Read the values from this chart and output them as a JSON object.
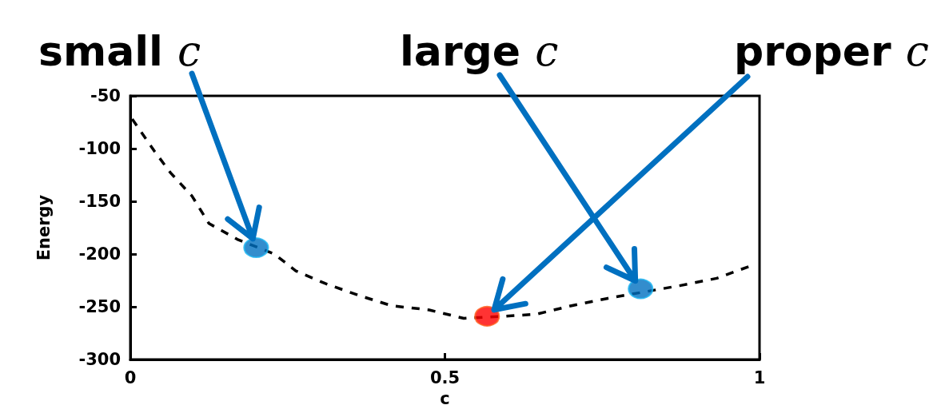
{
  "chart_data": {
    "type": "line",
    "xlabel": "c",
    "ylabel": "Energy",
    "xlim": [
      0,
      1
    ],
    "xticks": [
      0,
      0.5,
      1
    ],
    "ylim": [
      -300,
      -50
    ],
    "yticks": [
      -300,
      -250,
      -200,
      -150,
      -100,
      -50
    ],
    "grid": false,
    "series": [
      {
        "color": "#000000",
        "line_style": "dashed",
        "marker": "none",
        "x": [
          0.003,
          0.039,
          0.064,
          0.098,
          0.125,
          0.17,
          0.229,
          0.263,
          0.31,
          0.362,
          0.415,
          0.475,
          0.53,
          0.593,
          0.646,
          0.701,
          0.759,
          0.873,
          0.932,
          0.987
        ],
        "values": [
          -72,
          -103,
          -123,
          -145,
          -171,
          -186,
          -200,
          -216,
          -228,
          -239,
          -249,
          -253,
          -261,
          -259,
          -257,
          -249,
          -242,
          -230,
          -223,
          -211
        ]
      },
      {
        "type": "scatter",
        "marker": "circle",
        "x": [
          0.2,
          0.811,
          0.567
        ],
        "values": [
          -194,
          -233,
          -259
        ],
        "colors": [
          "#0070c0",
          "#0070c0",
          "#ff0000"
        ]
      }
    ],
    "annotations": [
      "small c",
      "large c",
      "proper c"
    ]
  }
}
